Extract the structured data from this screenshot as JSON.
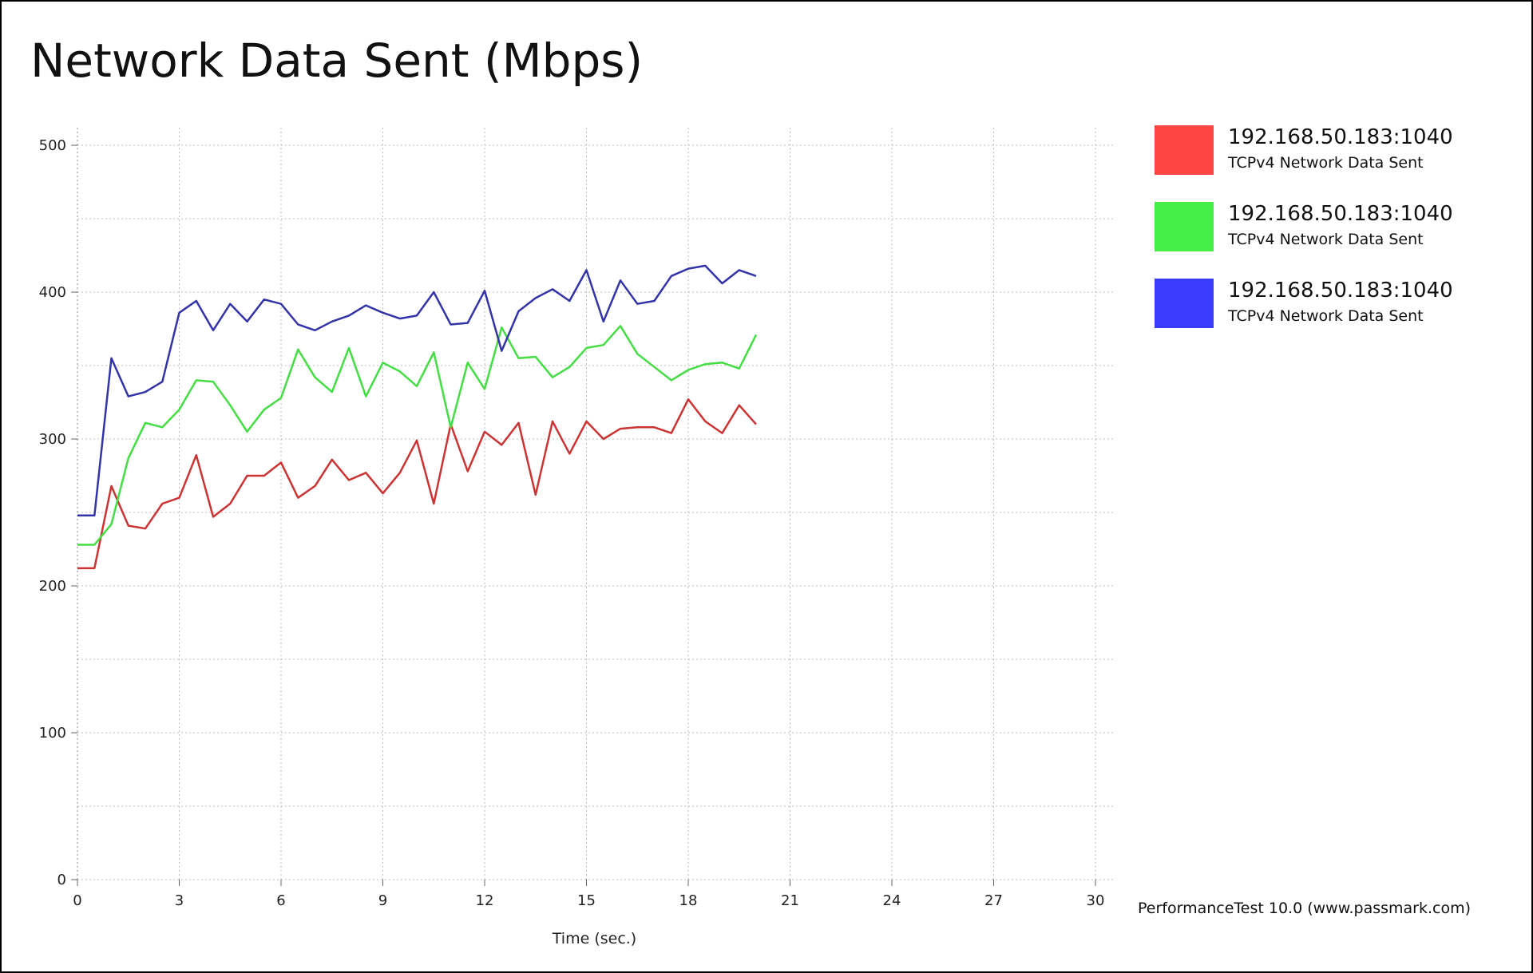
{
  "chart_data": {
    "type": "line",
    "title": "Network Data Sent (Mbps)",
    "xlabel": "Time (sec.)",
    "ylabel": "",
    "xlim": [
      0,
      30
    ],
    "ylim": [
      0,
      500
    ],
    "x_ticks": [
      0,
      3,
      6,
      9,
      12,
      15,
      18,
      21,
      24,
      27,
      30
    ],
    "y_ticks": [
      0,
      100,
      200,
      300,
      400,
      500
    ],
    "grid": true,
    "legend_position": "right",
    "x": [
      0,
      0.5,
      1,
      1.5,
      2,
      2.5,
      3,
      3.5,
      4,
      4.5,
      5,
      5.5,
      6,
      6.5,
      7,
      7.5,
      8,
      8.5,
      9,
      9.5,
      10,
      10.5,
      11,
      11.5,
      12,
      12.5,
      13,
      13.5,
      14,
      14.5,
      15,
      15.5,
      16,
      16.5,
      17,
      17.5,
      18,
      18.5,
      19,
      19.5,
      20
    ],
    "series": [
      {
        "name": "192.168.50.183:1040",
        "description": "TCPv4 Network Data Sent",
        "color": "#ff4444",
        "line_color": "#cc3333",
        "values": [
          212,
          212,
          268,
          241,
          239,
          256,
          260,
          289,
          247,
          256,
          275,
          275,
          284,
          260,
          268,
          286,
          272,
          277,
          263,
          277,
          299,
          256,
          310,
          278,
          305,
          296,
          311,
          262,
          312,
          290,
          312,
          300,
          307,
          308,
          308,
          304,
          327,
          312,
          304,
          323,
          310
        ]
      },
      {
        "name": "192.168.50.183:1040",
        "description": "TCPv4 Network Data Sent",
        "color": "#44ee44",
        "line_color": "#44dd44",
        "values": [
          228,
          228,
          242,
          287,
          311,
          308,
          320,
          340,
          339,
          323,
          305,
          320,
          328,
          361,
          342,
          332,
          362,
          329,
          352,
          346,
          336,
          359,
          308,
          352,
          334,
          376,
          355,
          356,
          342,
          349,
          362,
          364,
          377,
          358,
          349,
          340,
          347,
          351,
          352,
          348,
          371
        ]
      },
      {
        "name": "192.168.50.183:1040",
        "description": "TCPv4 Network Data Sent",
        "color": "#3b3bff",
        "line_color": "#3333aa",
        "values": [
          248,
          248,
          355,
          329,
          332,
          339,
          386,
          394,
          374,
          392,
          380,
          395,
          392,
          378,
          374,
          380,
          384,
          391,
          386,
          382,
          384,
          400,
          378,
          379,
          401,
          360,
          387,
          396,
          402,
          394,
          415,
          380,
          408,
          392,
          394,
          411,
          416,
          418,
          406,
          415,
          411
        ]
      }
    ]
  },
  "footer": {
    "credit": "PerformanceTest 10.0 (www.passmark.com)"
  }
}
